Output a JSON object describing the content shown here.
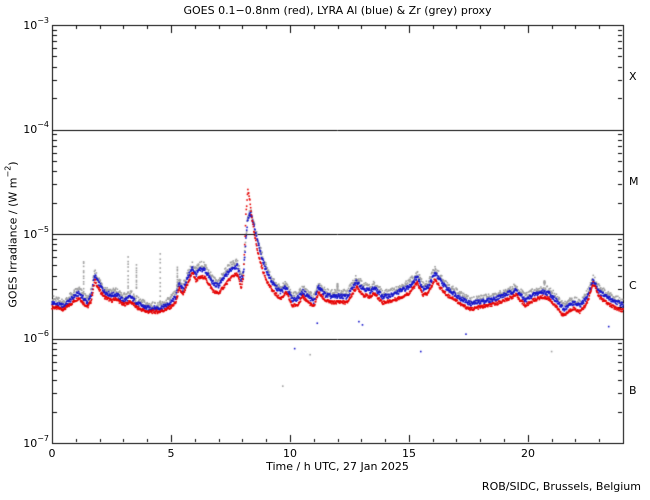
{
  "page": {
    "title": "GOES 0.1−0.8nm (red), LYRA Al (blue) & Zr (grey) proxy",
    "footer": "ROB/SIDC, Brussels, Belgium"
  },
  "chart_data": {
    "type": "scatter",
    "title": "GOES 0.1−0.8nm (red), LYRA Al (blue) & Zr (grey) proxy",
    "xlabel": "Time / h UTC, 27 Jan 2025",
    "ylabel": {
      "prefix": "GOES Irradiance / (W m",
      "sup": "−2",
      "suffix": ")"
    },
    "xlim": [
      0,
      24
    ],
    "ylim_exp": [
      -7,
      -3
    ],
    "grid": "off",
    "legend": "in-title",
    "xticks": {
      "major": [
        0,
        5,
        10,
        15,
        20
      ],
      "labels": [
        "0",
        "5",
        "10",
        "15",
        "20"
      ],
      "minor_step_hours": 1
    },
    "yticks": [
      {
        "base": "10",
        "sup": "−3",
        "e": -3
      },
      {
        "base": "10",
        "sup": "−4",
        "e": -4
      },
      {
        "base": "10",
        "sup": "−5",
        "e": -5
      },
      {
        "base": "10",
        "sup": "−6",
        "e": -6
      },
      {
        "base": "10",
        "sup": "−7",
        "e": -7
      }
    ],
    "class_lines_exp": [
      -4,
      -5,
      -6
    ],
    "class_labels": [
      {
        "label": "X",
        "mid_e": -3.5
      },
      {
        "label": "M",
        "mid_e": -4.5
      },
      {
        "label": "C",
        "mid_e": -5.5
      },
      {
        "label": "B",
        "mid_e": -6.5
      }
    ],
    "value_unit": 1e-06,
    "sample_minutes": 1,
    "flare_peak": {
      "t_utc": 8.2,
      "goes_peak": 2.6e-05,
      "class": "M2.6"
    },
    "t": [
      0,
      0.25,
      0.5,
      0.75,
      1.0,
      1.15,
      1.3,
      1.5,
      1.65,
      1.8,
      1.95,
      2.2,
      2.5,
      2.7,
      3.0,
      3.3,
      3.6,
      4.0,
      4.5,
      4.8,
      5.0,
      5.2,
      5.35,
      5.5,
      5.7,
      5.9,
      6.05,
      6.2,
      6.4,
      6.6,
      6.8,
      7.0,
      7.3,
      7.6,
      7.8,
      7.95,
      8.05,
      8.15,
      8.23,
      8.3,
      8.36,
      8.5,
      8.7,
      8.9,
      9.1,
      9.3,
      9.6,
      9.85,
      10.1,
      10.3,
      10.55,
      10.8,
      11.0,
      11.2,
      11.5,
      11.8,
      12.1,
      12.4,
      12.8,
      13.1,
      13.4,
      13.55,
      13.9,
      14.3,
      14.7,
      15.0,
      15.35,
      15.6,
      15.8,
      16.1,
      16.35,
      16.6,
      16.9,
      17.2,
      17.6,
      18.0,
      18.5,
      19.0,
      19.5,
      19.9,
      20.2,
      20.6,
      20.9,
      21.2,
      21.5,
      21.9,
      22.2,
      22.5,
      22.75,
      23.0,
      23.3,
      23.6,
      24.0
    ],
    "series": [
      {
        "name": "GOES 0.1−0.8nm (red)",
        "color": "#e60000",
        "values": [
          2.0,
          1.95,
          1.9,
          2.1,
          2.35,
          2.45,
          2.2,
          2.0,
          2.3,
          3.6,
          3.0,
          2.5,
          2.3,
          2.4,
          2.1,
          2.25,
          1.95,
          1.8,
          1.8,
          1.9,
          2.0,
          2.2,
          3.0,
          2.6,
          3.3,
          4.3,
          3.6,
          3.8,
          3.9,
          3.3,
          2.8,
          2.7,
          3.3,
          4.0,
          4.1,
          3.0,
          4.0,
          15.0,
          26.0,
          22.0,
          17.0,
          10.0,
          6.0,
          4.2,
          3.3,
          2.8,
          2.4,
          2.75,
          2.05,
          2.1,
          2.5,
          2.2,
          2.0,
          2.75,
          2.3,
          2.2,
          2.25,
          2.2,
          3.1,
          2.6,
          2.5,
          2.7,
          2.2,
          2.3,
          2.5,
          2.7,
          3.4,
          2.6,
          2.7,
          3.7,
          3.0,
          2.6,
          2.4,
          2.1,
          1.9,
          2.0,
          2.1,
          2.3,
          2.6,
          2.05,
          2.3,
          2.5,
          2.4,
          2.0,
          1.65,
          1.95,
          1.8,
          2.2,
          3.4,
          2.5,
          2.2,
          2.0,
          1.85
        ]
      },
      {
        "name": "LYRA Al (blue)",
        "color": "#1414cc",
        "values": [
          2.2,
          2.1,
          2.05,
          2.3,
          2.6,
          2.7,
          2.45,
          2.2,
          2.6,
          4.0,
          3.4,
          2.8,
          2.6,
          2.65,
          2.3,
          2.5,
          2.15,
          1.95,
          1.95,
          2.05,
          2.2,
          2.5,
          3.4,
          2.9,
          3.8,
          4.7,
          4.1,
          4.5,
          4.6,
          3.9,
          3.3,
          3.2,
          4.0,
          4.8,
          4.9,
          3.6,
          4.2,
          9.0,
          14.0,
          15.5,
          15.5,
          11.5,
          7.5,
          5.2,
          4.0,
          3.3,
          2.8,
          3.1,
          2.35,
          2.4,
          2.8,
          2.5,
          2.25,
          3.1,
          2.6,
          2.5,
          2.55,
          2.5,
          3.5,
          3.0,
          2.85,
          3.05,
          2.5,
          2.6,
          2.9,
          3.1,
          3.9,
          3.0,
          3.1,
          4.2,
          3.5,
          3.0,
          2.7,
          2.4,
          2.15,
          2.25,
          2.35,
          2.6,
          2.9,
          2.3,
          2.6,
          2.8,
          2.7,
          2.3,
          1.9,
          2.2,
          2.05,
          2.5,
          3.6,
          2.8,
          2.5,
          2.3,
          2.1
        ]
      },
      {
        "name": "Zr (grey) proxy",
        "color": "#a0a0a0",
        "values": [
          2.4,
          2.3,
          2.2,
          2.5,
          2.8,
          2.95,
          2.6,
          2.35,
          2.8,
          4.3,
          3.7,
          3.0,
          2.8,
          2.85,
          2.5,
          2.7,
          2.3,
          2.1,
          2.05,
          2.2,
          2.4,
          2.7,
          3.7,
          3.1,
          4.1,
          5.0,
          4.5,
          5.0,
          5.1,
          4.3,
          3.6,
          3.5,
          4.4,
          5.3,
          5.4,
          3.9,
          4.4,
          9.5,
          14.5,
          16.0,
          16.0,
          12.0,
          8.0,
          5.6,
          4.3,
          3.5,
          3.0,
          3.3,
          2.55,
          2.6,
          3.0,
          2.7,
          2.45,
          3.3,
          2.8,
          2.7,
          2.75,
          2.7,
          3.8,
          3.2,
          3.05,
          3.3,
          2.7,
          2.8,
          3.1,
          3.4,
          4.2,
          3.2,
          3.3,
          4.6,
          3.8,
          3.2,
          2.9,
          2.6,
          2.3,
          2.4,
          2.5,
          2.8,
          3.1,
          2.5,
          2.8,
          3.0,
          2.9,
          2.5,
          2.05,
          2.35,
          2.2,
          2.7,
          3.8,
          3.0,
          2.7,
          2.45,
          2.25
        ]
      }
    ],
    "noise_spikes": [
      {
        "t": 1.33,
        "top": 5.5
      },
      {
        "t": 3.2,
        "top": 6.0
      },
      {
        "t": 3.55,
        "top": 5.0
      },
      {
        "t": 4.55,
        "top": 6.5
      },
      {
        "t": 5.27,
        "top": 4.8
      },
      {
        "t": 12.0,
        "top": 3.4
      },
      {
        "t": 20.7,
        "top": 3.6
      }
    ],
    "stray_dots": [
      {
        "t": 9.45,
        "v": 2.9,
        "c": 1
      },
      {
        "t": 9.7,
        "v": 0.35,
        "c": 2
      },
      {
        "t": 10.2,
        "v": 0.8,
        "c": 1
      },
      {
        "t": 10.85,
        "v": 0.7,
        "c": 2
      },
      {
        "t": 11.15,
        "v": 1.4,
        "c": 1
      },
      {
        "t": 12.9,
        "v": 1.45,
        "c": 1
      },
      {
        "t": 13.05,
        "v": 1.35,
        "c": 1
      },
      {
        "t": 15.5,
        "v": 0.75,
        "c": 1
      },
      {
        "t": 17.4,
        "v": 1.1,
        "c": 1
      },
      {
        "t": 21.0,
        "v": 0.75,
        "c": 2
      },
      {
        "t": 23.4,
        "v": 1.3,
        "c": 1
      }
    ]
  }
}
